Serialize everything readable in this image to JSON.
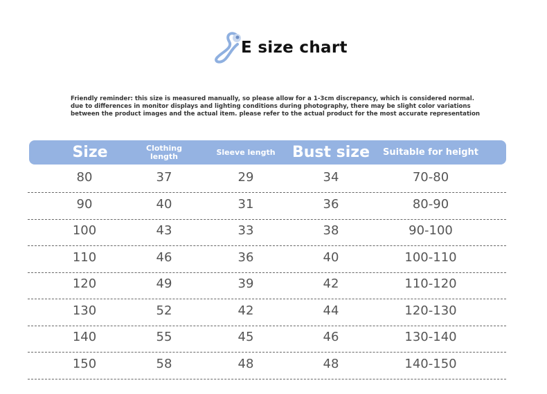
{
  "title": "E size chart",
  "reminder": [
    "Friendly reminder: this size is measured manually, so please allow for a 1-3cm discrepancy, which is considered normal.",
    "due to differences in monitor displays and lighting conditions during photography, there may be slight color variations",
    "between the product images and the actual item. please refer to the actual product for the most accurate representation"
  ],
  "colors": {
    "header": "#95b3e2",
    "text": "#555555"
  },
  "table": {
    "headers": [
      "Size",
      "Clothing length",
      "Sleeve length",
      "Bust size",
      "Suitable for height"
    ],
    "rows": [
      [
        "80",
        "37",
        "29",
        "34",
        "70-80"
      ],
      [
        "90",
        "40",
        "31",
        "36",
        "80-90"
      ],
      [
        "100",
        "43",
        "33",
        "38",
        "90-100"
      ],
      [
        "110",
        "46",
        "36",
        "40",
        "100-110"
      ],
      [
        "120",
        "49",
        "39",
        "42",
        "110-120"
      ],
      [
        "130",
        "52",
        "42",
        "44",
        "120-130"
      ],
      [
        "140",
        "55",
        "45",
        "46",
        "130-140"
      ],
      [
        "150",
        "58",
        "48",
        "48",
        "140-150"
      ]
    ]
  }
}
